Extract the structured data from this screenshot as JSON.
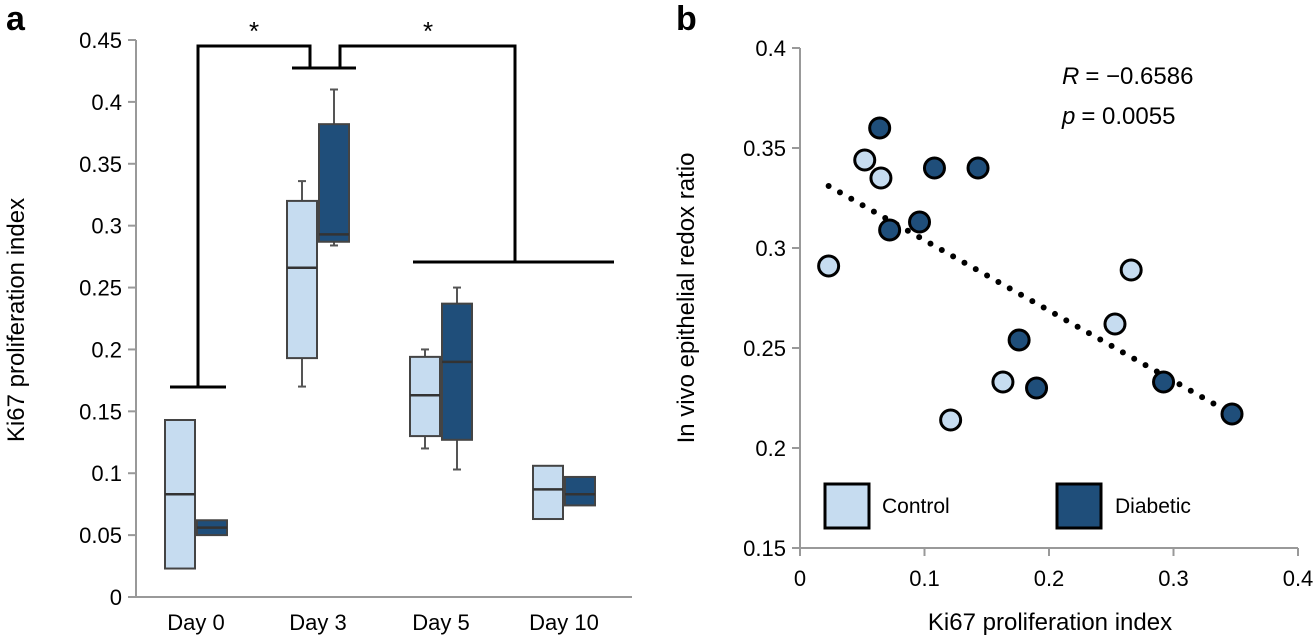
{
  "colors": {
    "control": "#c6dcf0",
    "diabetic": "#1f4e7a",
    "axis": "#999999",
    "ink": "#000000"
  },
  "chart_data": [
    {
      "type": "box",
      "panel": "a",
      "title": "",
      "xlabel": "",
      "ylabel": "Ki67 proliferation index",
      "ylim": [
        0,
        0.45
      ],
      "yticks": [
        0,
        0.05,
        0.1,
        0.15,
        0.2,
        0.25,
        0.3,
        0.35,
        0.4,
        0.45
      ],
      "ytick_labels": [
        "0",
        "0.05",
        "0.1",
        "0.15",
        "0.2",
        "0.25",
        "0.3",
        "0.35",
        "0.4",
        "0.45"
      ],
      "categories": [
        "Day 0",
        "Day 3",
        "Day 5",
        "Day 10"
      ],
      "series": [
        {
          "name": "Control",
          "color": "#c6dcf0",
          "boxes": [
            {
              "q1": 0.023,
              "median": 0.083,
              "q3": 0.143
            },
            {
              "min": 0.17,
              "q1": 0.193,
              "median": 0.266,
              "q3": 0.32,
              "max": 0.336
            },
            {
              "min": 0.12,
              "q1": 0.13,
              "median": 0.163,
              "q3": 0.194,
              "max": 0.2
            },
            {
              "q1": 0.063,
              "median": 0.087,
              "q3": 0.106
            }
          ]
        },
        {
          "name": "Diabetic",
          "color": "#1f4e7a",
          "boxes": [
            {
              "q1": 0.05,
              "median": 0.056,
              "q3": 0.062
            },
            {
              "min": 0.284,
              "q1": 0.287,
              "median": 0.293,
              "q3": 0.382,
              "max": 0.41
            },
            {
              "min": 0.103,
              "q1": 0.127,
              "median": 0.19,
              "q3": 0.237,
              "max": 0.25
            },
            {
              "q1": 0.074,
              "median": 0.083,
              "q3": 0.097
            }
          ]
        }
      ],
      "significance": [
        {
          "label": "*",
          "between": [
            "Day 0",
            "Day 3"
          ]
        },
        {
          "label": "*",
          "between": [
            "Day 3",
            "Day 5 & Day 10"
          ]
        }
      ]
    },
    {
      "type": "scatter",
      "panel": "b",
      "title": "",
      "xlabel": "Ki67 proliferation index",
      "ylabel": "In vivo epithelial redox ratio",
      "xlim": [
        0,
        0.4
      ],
      "ylim": [
        0.15,
        0.4
      ],
      "xticks": [
        0,
        0.1,
        0.2,
        0.3,
        0.4
      ],
      "xtick_labels": [
        "0",
        "0.1",
        "0.2",
        "0.3",
        "0.4"
      ],
      "yticks": [
        0.15,
        0.2,
        0.25,
        0.3,
        0.35,
        0.4
      ],
      "ytick_labels": [
        "0.15",
        "0.2",
        "0.25",
        "0.3",
        "0.35",
        "0.4"
      ],
      "series": [
        {
          "name": "Control",
          "color": "#c6dcf0",
          "points": [
            [
              0.023,
              0.291
            ],
            [
              0.052,
              0.344
            ],
            [
              0.065,
              0.335
            ],
            [
              0.121,
              0.214
            ],
            [
              0.163,
              0.233
            ],
            [
              0.253,
              0.262
            ],
            [
              0.266,
              0.289
            ]
          ]
        },
        {
          "name": "Diabetic",
          "color": "#1f4e7a",
          "points": [
            [
              0.064,
              0.36
            ],
            [
              0.072,
              0.309
            ],
            [
              0.096,
              0.313
            ],
            [
              0.108,
              0.34
            ],
            [
              0.143,
              0.34
            ],
            [
              0.176,
              0.254
            ],
            [
              0.19,
              0.23
            ],
            [
              0.292,
              0.233
            ],
            [
              0.347,
              0.217
            ]
          ]
        }
      ],
      "trendline": {
        "style": "dotted",
        "x": [
          0.023,
          0.347
        ],
        "y": [
          0.331,
          0.217
        ]
      },
      "annotation": {
        "r_label": "R",
        "r_value": "= −0.6586",
        "p_label": "p",
        "p_value": "= 0.0055"
      },
      "legend": [
        "Control",
        "Diabetic"
      ]
    }
  ]
}
